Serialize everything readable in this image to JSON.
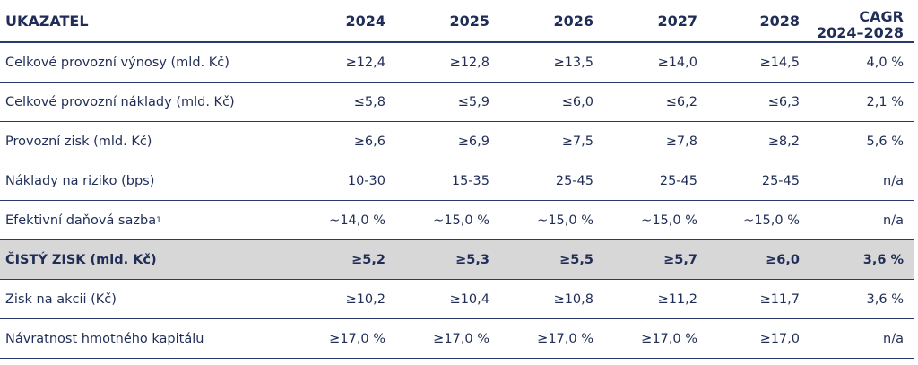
{
  "table": {
    "header": {
      "indicator": "UKAZATEL",
      "years": [
        "2024",
        "2025",
        "2026",
        "2027",
        "2028"
      ],
      "cagr_line1": "CAGR",
      "cagr_line2": "2024–2028"
    },
    "rows": [
      {
        "label": "Celkové provozní výnosy (mld. Kč)",
        "values": [
          "≥12,4",
          "≥12,8",
          "≥13,5",
          "≥14,0",
          "≥14,5"
        ],
        "cagr": "4,0 %"
      },
      {
        "label": "Celkové provozní náklady (mld. Kč)",
        "values": [
          "≤5,8",
          "≤5,9",
          "≤6,0",
          "≤6,2",
          "≤6,3"
        ],
        "cagr": "2,1 %"
      },
      {
        "label": "Provozní zisk (mld. Kč)",
        "values": [
          "≥6,6",
          "≥6,9",
          "≥7,5",
          "≥7,8",
          "≥8,2"
        ],
        "cagr": "5,6 %"
      },
      {
        "label": "Náklady na riziko (bps)",
        "values": [
          "10-30",
          "15-35",
          "25-45",
          "25-45",
          "25-45"
        ],
        "cagr": "n/a"
      },
      {
        "label": "Efektivní daňová sazba",
        "footnote": "1",
        "values": [
          "~14,0 %",
          "~15,0 %",
          "~15,0 %",
          "~15,0 %",
          "~15,0 %"
        ],
        "cagr": "n/a"
      },
      {
        "label": "ČISTÝ ZISK (mld. Kč)",
        "values": [
          "≥5,2",
          "≥5,3",
          "≥5,5",
          "≥5,7",
          "≥6,0"
        ],
        "cagr": "3,6 %"
      },
      {
        "label": "Zisk na akcii (Kč)",
        "values": [
          "≥10,2",
          "≥10,4",
          "≥10,8",
          "≥11,2",
          "≥11,7"
        ],
        "cagr": "3,6 %"
      },
      {
        "label": "Návratnost hmotného kapitálu",
        "values": [
          "≥17,0 %",
          "≥17,0 %",
          "≥17,0 %",
          "≥17,0 %",
          "≥17,0"
        ],
        "cagr": "n/a"
      }
    ]
  },
  "colors": {
    "text": "#1f2d57",
    "rule": "#2b3a6e",
    "highlight_bg": "#d7d7d7"
  }
}
